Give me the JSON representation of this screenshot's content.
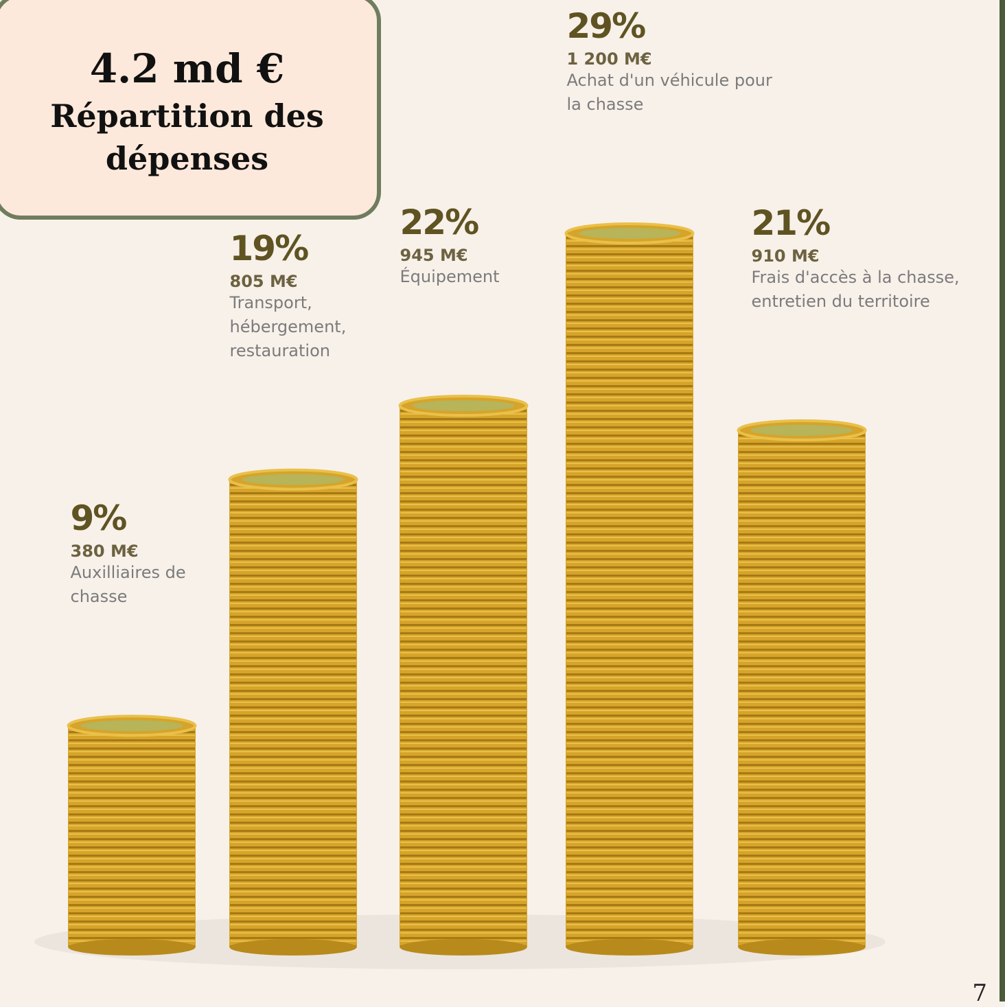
{
  "chart_data": {
    "type": "bar",
    "title": "4.2 md €",
    "subtitle": "Répartition des dépenses",
    "categories": [
      "Auxilliaires de chasse",
      "Transport, hébergement, restauration",
      "Équipement",
      "Achat d'un véhicule pour la chasse",
      "Frais d'accès à la chasse, entretien du territoire"
    ],
    "values": [
      9,
      19,
      22,
      29,
      21
    ],
    "value_labels": [
      "9%",
      "19%",
      "22%",
      "29%",
      "21%"
    ],
    "amounts": [
      "380 M€",
      "805 M€",
      "945 M€",
      "1 200 M€",
      "910 M€"
    ],
    "color": "#d6a42a"
  },
  "page": {
    "number": "7"
  }
}
